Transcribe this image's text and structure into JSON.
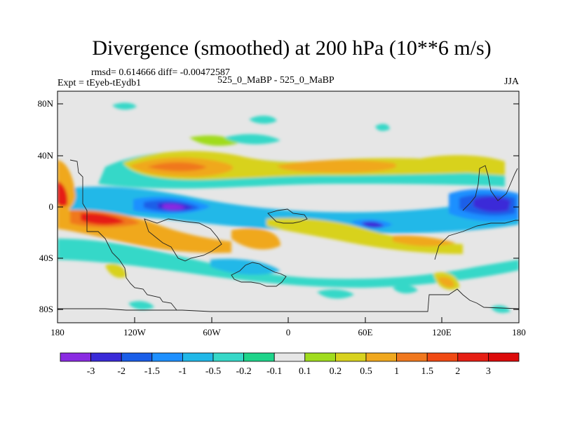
{
  "title": "Divergence (smoothed) at 200 hPa (10**6 m/s)",
  "stats_line": "rmsd= 0.614666 diff= -0.00472587",
  "experiment": "Expt = tEyeb-tEydb1",
  "case_label": "525_0_MaBP - 525_0_MaBP",
  "season": "JJA",
  "lat_ticks": [
    "80N",
    "40N",
    "0",
    "40S",
    "80S"
  ],
  "lon_ticks": [
    "180",
    "120W",
    "60W",
    "0",
    "60E",
    "120E",
    "180"
  ],
  "colorbar": {
    "labels": [
      "-3",
      "-2",
      "-1.5",
      "-1",
      "-0.5",
      "-0.2",
      "-0.1",
      "0.1",
      "0.2",
      "0.5",
      "1",
      "1.5",
      "2",
      "3"
    ],
    "colors": [
      "#8a2be2",
      "#3a2ad8",
      "#1a5ee8",
      "#1e90ff",
      "#21b8e8",
      "#36d8c8",
      "#1ed48a",
      "#e6e6e6",
      "#a0dc1e",
      "#d8d21e",
      "#f0a81e",
      "#f0781e",
      "#f04a14",
      "#e61e14",
      "#dc0a0a"
    ]
  }
}
